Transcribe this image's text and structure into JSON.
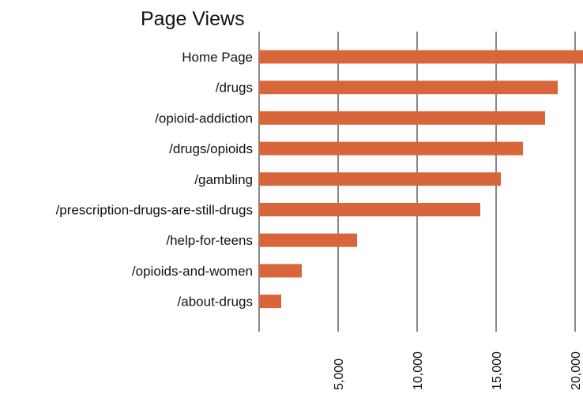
{
  "chart_data": {
    "type": "bar",
    "orientation": "horizontal",
    "title": "Page Views",
    "xlabel": "",
    "ylabel": "",
    "categories": [
      "Home Page",
      "/drugs",
      "/opioid-addiction",
      "/drugs/opioids",
      "/gambling",
      "/prescription-drugs-are-still-drugs",
      "/help-for-teens",
      "/opioids-and-women",
      "/about-drugs"
    ],
    "values": [
      20800,
      18900,
      18100,
      16700,
      15300,
      14000,
      6200,
      2700,
      1400
    ],
    "xlim": [
      0,
      20500
    ],
    "x_ticks": [
      5000,
      10000,
      15000,
      20000
    ],
    "x_tick_labels": [
      "5,000",
      "10,000",
      "15,000",
      "20,000"
    ],
    "grid": "vertical",
    "legend": "none",
    "bar_color": "#D9653B",
    "grid_color": "#6b6b6b"
  }
}
